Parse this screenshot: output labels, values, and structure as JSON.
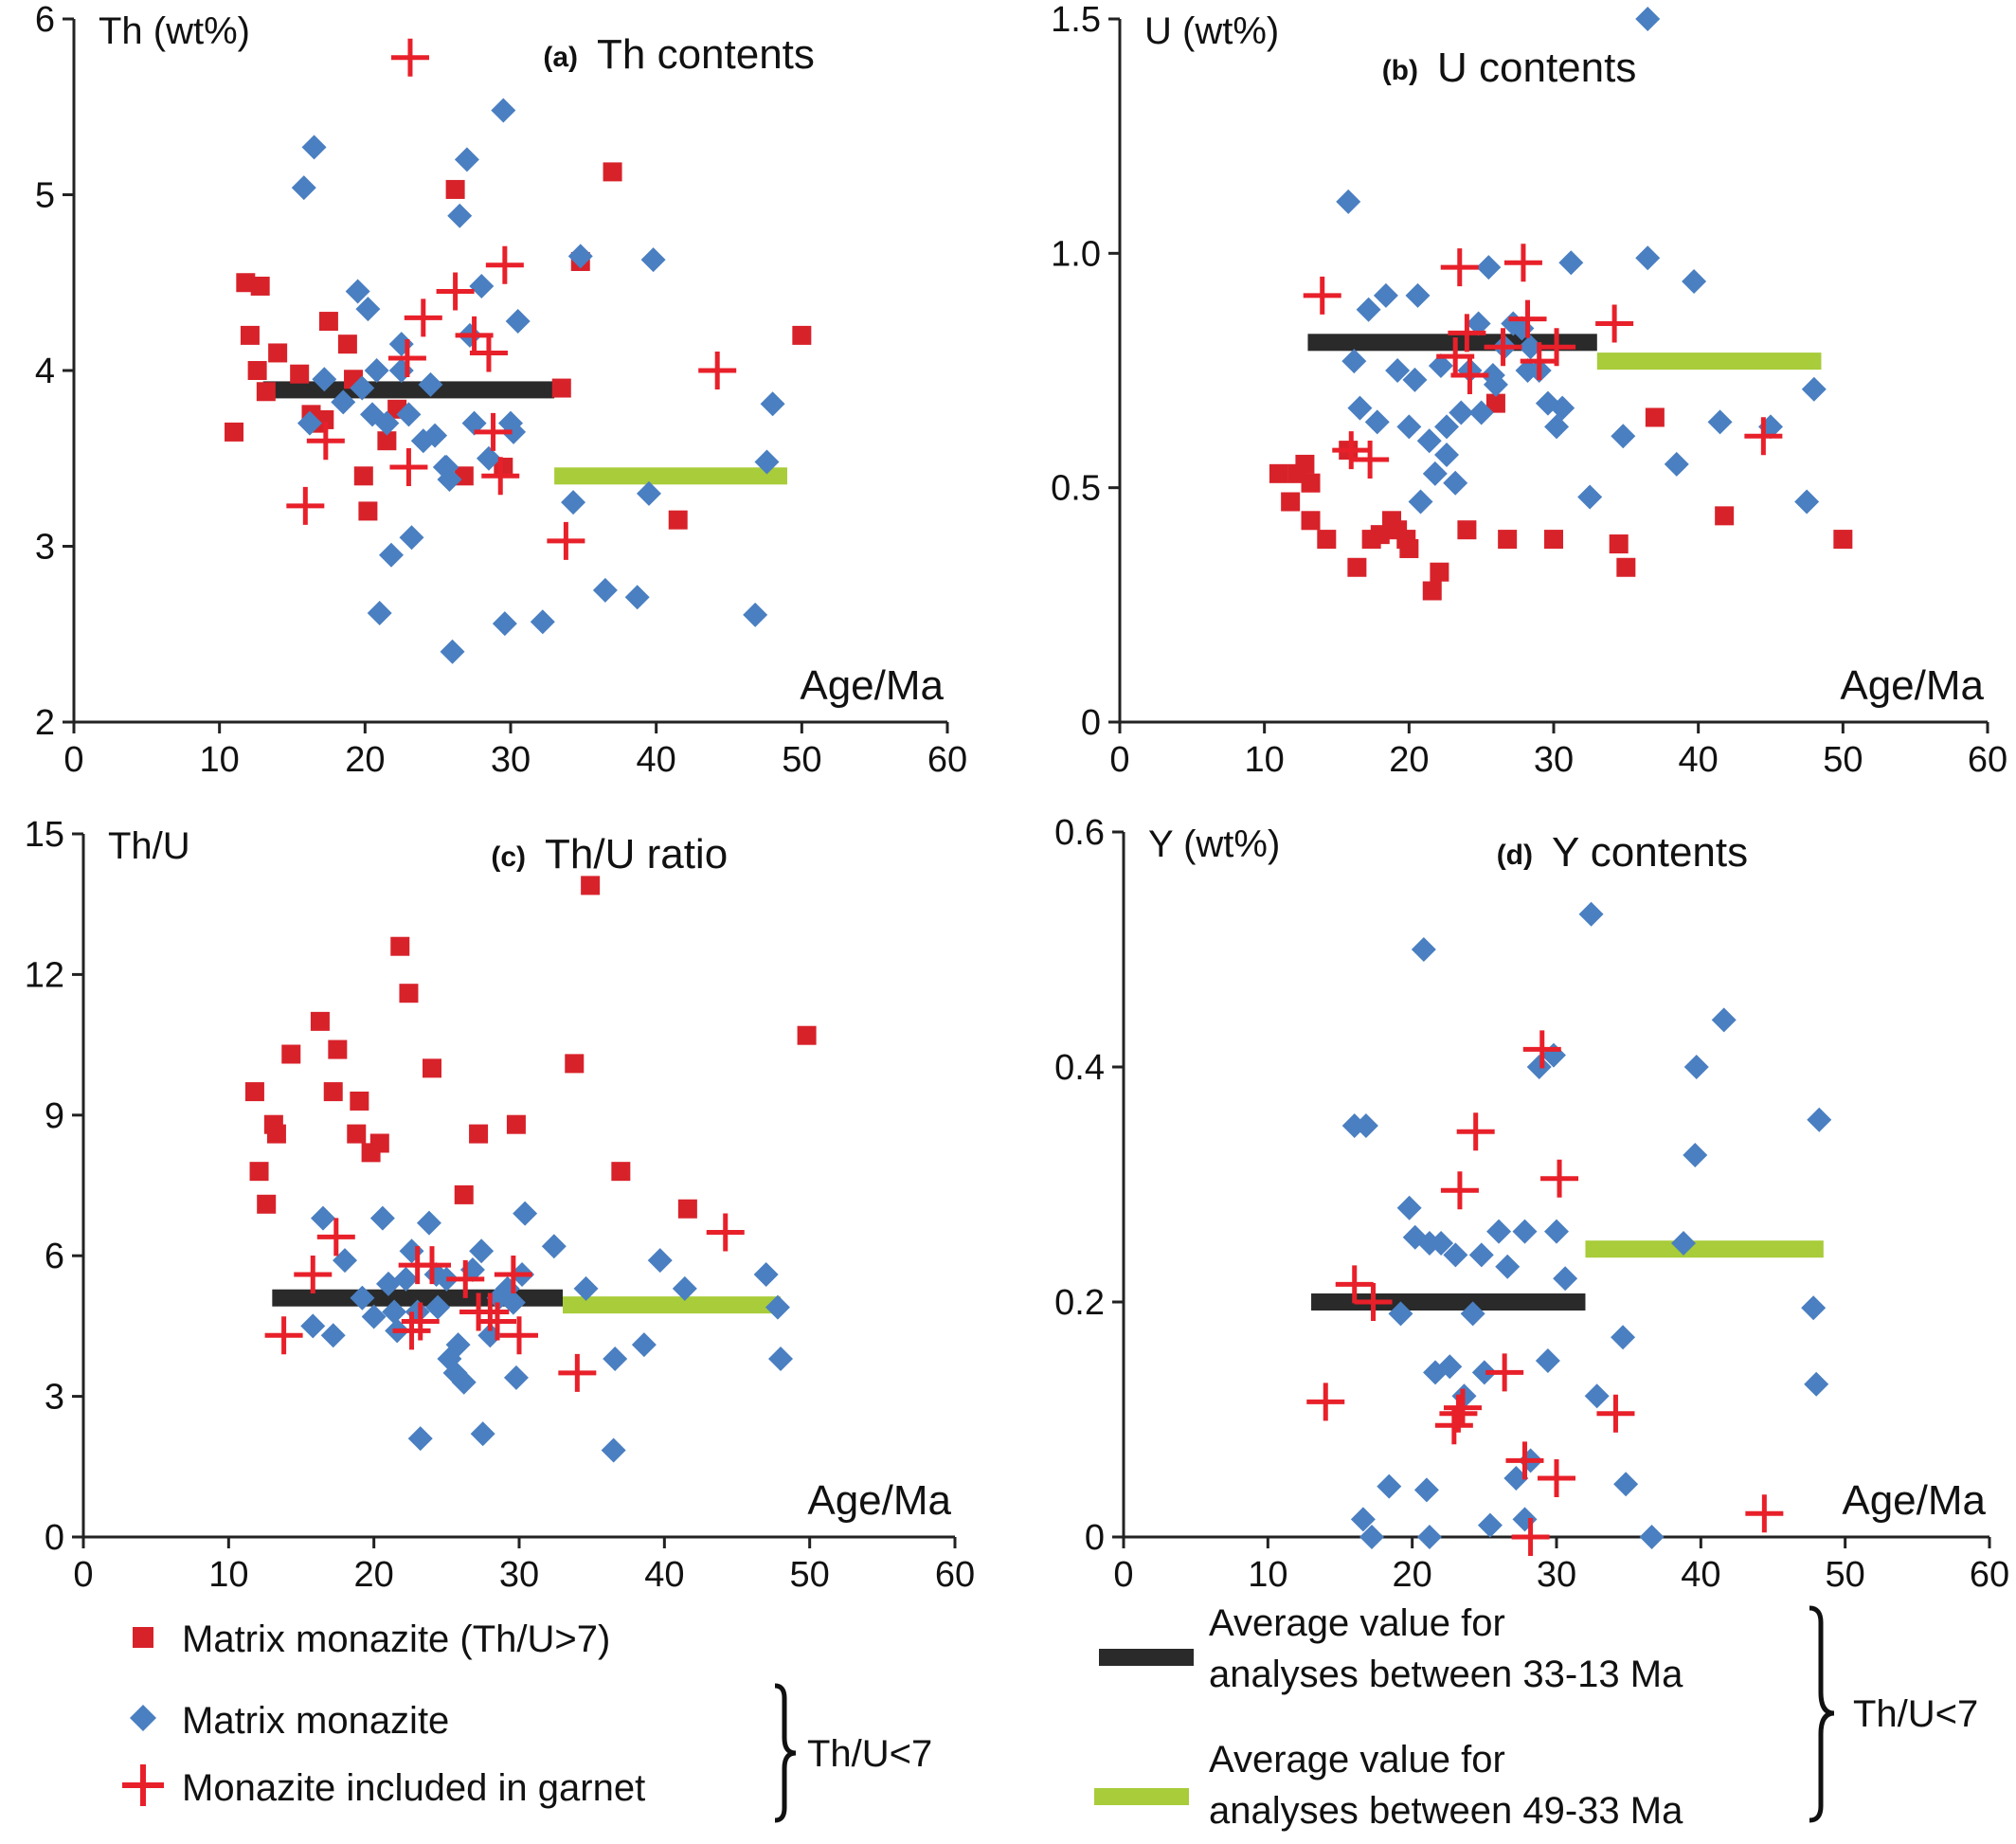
{
  "colors": {
    "matrix_high": "#d8222a",
    "matrix": "#4a7fc1",
    "garnet": "#e8202a",
    "avg_33_13": "#2a2a2a",
    "avg_49_33": "#a8cc3a"
  },
  "legend": {
    "matrix_high": "Matrix monazite (Th/U>7)",
    "matrix": "Matrix monazite",
    "garnet": "Monazite included in garnet",
    "brace_left": "Th/U<7",
    "avg_33_13_line1": "Average value for",
    "avg_33_13_line2": "analyses between  33-13 Ma",
    "avg_49_33_line1": "Average value for",
    "avg_49_33_line2": "analyses between  49-33 Ma",
    "brace_right": "Th/U<7"
  },
  "chart_data": [
    {
      "type": "scatter",
      "letter": "(a)",
      "title": "Th contents",
      "xlabel": "Age/Ma",
      "ylabel": "Th (wt%)",
      "xlim": [
        0,
        60
      ],
      "ylim": [
        2,
        6
      ],
      "xticks": [
        "0",
        "10",
        "20",
        "30",
        "40",
        "50",
        "60"
      ],
      "yticks": [
        "2",
        "3",
        "4",
        "5",
        "6"
      ],
      "xtick_values": [
        0,
        10,
        20,
        30,
        40,
        50,
        60
      ],
      "ytick_values": [
        2,
        3,
        4,
        5,
        6
      ],
      "series": [
        {
          "name": "Matrix monazite (Th/U>7)",
          "marker": "square",
          "x": [
            11,
            11.8,
            12.1,
            12.8,
            12.6,
            13.2,
            14,
            15.5,
            16.3,
            16.8,
            17.2,
            17.5,
            18.8,
            19.2,
            19.9,
            20.2,
            21.5,
            22.2,
            26.2,
            26.8,
            29.5,
            33.5,
            34.8,
            37,
            41.5,
            50
          ],
          "y": [
            3.65,
            4.5,
            4.2,
            4.48,
            4.0,
            3.88,
            4.1,
            3.98,
            3.75,
            3.7,
            3.72,
            4.28,
            4.15,
            3.95,
            3.4,
            3.2,
            3.6,
            3.78,
            5.03,
            3.4,
            3.45,
            3.9,
            4.62,
            5.13,
            3.15,
            4.2
          ]
        },
        {
          "name": "Matrix monazite",
          "marker": "diamond",
          "x": [
            15.8,
            16.5,
            16.2,
            17.2,
            18.5,
            19.5,
            20.2,
            20.5,
            21,
            21.5,
            22.5,
            23,
            24,
            24.5,
            25.5,
            26,
            27.5,
            26.5,
            27,
            28,
            29.5,
            30,
            30.5,
            19.8,
            20.8,
            21.8,
            22.5,
            23.2,
            24.8,
            25.6,
            25.8,
            27.2,
            28.5,
            30.2,
            29.6,
            32.2,
            34.3,
            34.8,
            36.5,
            38.7,
            39.5,
            39.8,
            46.8,
            47.6,
            48
          ],
          "y": [
            5.04,
            5.27,
            3.7,
            3.95,
            3.82,
            4.45,
            4.35,
            3.75,
            2.62,
            3.7,
            4.15,
            3.75,
            3.6,
            3.92,
            3.45,
            2.4,
            3.7,
            4.88,
            5.2,
            4.48,
            5.48,
            3.7,
            4.28,
            3.9,
            4.0,
            2.95,
            4.0,
            3.05,
            3.63,
            3.45,
            3.38,
            4.2,
            3.5,
            3.65,
            2.56,
            2.57,
            3.25,
            4.65,
            2.75,
            2.71,
            3.3,
            4.63,
            2.61,
            3.48,
            3.81
          ]
        },
        {
          "name": "Monazite included in garnet",
          "marker": "plus",
          "x": [
            15.9,
            17.3,
            22.9,
            23,
            24,
            26.2,
            27.5,
            28.5,
            28.8,
            29.6,
            29.3,
            33.8,
            44.2,
            23.1
          ],
          "y": [
            3.23,
            3.6,
            4.07,
            3.45,
            4.3,
            4.45,
            4.2,
            4.1,
            3.65,
            4.6,
            3.4,
            3.03,
            4.0,
            5.78
          ]
        }
      ],
      "averages": [
        {
          "name": "avg_33_13",
          "from": 13,
          "to": 33,
          "y": 3.89
        },
        {
          "name": "avg_49_33",
          "from": 33,
          "to": 49,
          "y": 3.4
        }
      ]
    },
    {
      "type": "scatter",
      "letter": "(b)",
      "title": "U contents",
      "xlabel": "Age/Ma",
      "ylabel": "U (wt%)",
      "xlim": [
        0,
        60
      ],
      "ylim": [
        0,
        1.5
      ],
      "xticks": [
        "0",
        "10",
        "20",
        "30",
        "40",
        "50",
        "60"
      ],
      "yticks": [
        "0",
        "0.5",
        "1.0",
        "1.5"
      ],
      "xtick_values": [
        0,
        10,
        20,
        30,
        40,
        50,
        60
      ],
      "ytick_values": [
        0,
        0.5,
        1.0,
        1.5
      ],
      "series": [
        {
          "name": "Matrix monazite (Th/U>7)",
          "marker": "square",
          "x": [
            11,
            11.8,
            12.3,
            12.8,
            13.2,
            13.2,
            14.3,
            15.8,
            16.4,
            17.4,
            18,
            18.8,
            19.2,
            19.8,
            20,
            21.6,
            22.1,
            24,
            26,
            26.8,
            30,
            34.5,
            35,
            37,
            41.8,
            50
          ],
          "y": [
            0.53,
            0.47,
            0.53,
            0.55,
            0.51,
            0.43,
            0.39,
            0.58,
            0.33,
            0.39,
            0.4,
            0.43,
            0.41,
            0.39,
            0.37,
            0.28,
            0.32,
            0.41,
            0.68,
            0.39,
            0.39,
            0.38,
            0.33,
            0.65,
            0.44,
            0.39
          ]
        },
        {
          "name": "Matrix monazite",
          "marker": "diamond",
          "x": [
            15.8,
            16.2,
            16.6,
            17.2,
            17.8,
            18.4,
            19.2,
            20,
            20.4,
            20.8,
            21.4,
            21.8,
            22.2,
            22.6,
            23.2,
            23.6,
            24.2,
            25,
            25.5,
            26,
            26.6,
            27.2,
            27.8,
            28.4,
            29,
            29.6,
            30.2,
            31.2,
            32.5,
            34.8,
            36.5,
            38.5,
            39.7,
            41.5,
            45,
            47.5,
            48,
            36.5,
            20.6,
            24.8,
            28.2,
            25.8,
            22.6,
            30.6
          ],
          "y": [
            1.11,
            0.77,
            0.67,
            0.88,
            0.64,
            0.91,
            0.75,
            0.63,
            0.73,
            0.47,
            0.6,
            0.53,
            0.76,
            0.63,
            0.51,
            0.66,
            0.75,
            0.66,
            0.97,
            0.72,
            0.8,
            0.85,
            0.84,
            0.8,
            0.75,
            0.68,
            0.63,
            0.98,
            0.48,
            0.61,
            0.99,
            0.55,
            0.94,
            0.64,
            0.63,
            0.47,
            0.71,
            1.5,
            0.91,
            0.85,
            0.75,
            0.74,
            0.57,
            0.67
          ]
        },
        {
          "name": "Monazite included in garnet",
          "marker": "plus",
          "x": [
            14,
            16,
            17.3,
            23.5,
            24,
            24.2,
            26.5,
            27.9,
            28.2,
            29,
            30.2,
            34.2,
            44.5,
            23.2
          ],
          "y": [
            0.91,
            0.58,
            0.56,
            0.97,
            0.83,
            0.74,
            0.8,
            0.98,
            0.86,
            0.77,
            0.8,
            0.85,
            0.61,
            0.78
          ]
        }
      ],
      "averages": [
        {
          "name": "avg_33_13",
          "from": 13,
          "to": 33,
          "y": 0.81
        },
        {
          "name": "avg_49_33",
          "from": 33,
          "to": 48.5,
          "y": 0.77
        }
      ]
    },
    {
      "type": "scatter",
      "letter": "(c)",
      "title": "Th/U ratio",
      "xlabel": "Age/Ma",
      "ylabel": "Th/U",
      "xlim": [
        0,
        60
      ],
      "ylim": [
        0,
        15
      ],
      "xticks": [
        "0",
        "10",
        "20",
        "30",
        "40",
        "50",
        "60"
      ],
      "yticks": [
        "0",
        "3",
        "6",
        "9",
        "12",
        "15"
      ],
      "xtick_values": [
        0,
        10,
        20,
        30,
        40,
        50,
        60
      ],
      "ytick_values": [
        0,
        3,
        6,
        9,
        12,
        15
      ],
      "series": [
        {
          "name": "Matrix monazite (Th/U>7)",
          "marker": "square",
          "x": [
            11.8,
            12.1,
            12.6,
            13.1,
            13.3,
            14.3,
            16.3,
            17.2,
            17.5,
            18.8,
            19,
            19.8,
            20.4,
            21.8,
            22.4,
            24,
            26.2,
            27.2,
            29.8,
            33.8,
            34.9,
            37,
            41.6,
            49.8
          ],
          "y": [
            9.5,
            7.8,
            7.1,
            8.8,
            8.6,
            10.3,
            11,
            9.5,
            10.4,
            8.6,
            9.3,
            8.2,
            8.4,
            12.6,
            11.6,
            10,
            7.3,
            8.6,
            8.8,
            10.1,
            13.9,
            7.8,
            7,
            10.7
          ]
        },
        {
          "name": "Matrix monazite",
          "marker": "diamond",
          "x": [
            15.8,
            16.5,
            17.2,
            18,
            19.2,
            20,
            20.6,
            21,
            21.6,
            22.2,
            22.6,
            23.2,
            23.8,
            24.4,
            25,
            25.6,
            26.2,
            26.8,
            27.4,
            28,
            28.6,
            29.2,
            29.8,
            30.4,
            32.4,
            34.6,
            36.6,
            38.6,
            39.7,
            41.4,
            47,
            47.8,
            48,
            21.4,
            23,
            24.3,
            25.8,
            27.5,
            30.2,
            36.5,
            25.2,
            29.6
          ],
          "y": [
            4.5,
            6.8,
            4.3,
            5.9,
            5.1,
            4.7,
            6.8,
            5.4,
            4.4,
            5.5,
            6.1,
            2.1,
            6.7,
            4.9,
            5.5,
            3.5,
            3.3,
            5.7,
            6.1,
            4.3,
            5.1,
            5.3,
            3.4,
            6.9,
            6.2,
            5.3,
            3.8,
            4.1,
            5.9,
            5.3,
            5.6,
            4.9,
            3.8,
            4.8,
            4.8,
            5.6,
            4.1,
            2.2,
            5.6,
            1.85,
            3.8,
            5.0
          ]
        },
        {
          "name": "Monazite included in garnet",
          "marker": "plus",
          "x": [
            13.8,
            15.8,
            17.4,
            23,
            23.2,
            24,
            26.3,
            27.2,
            28.5,
            29.6,
            30,
            34,
            44.2,
            22.6,
            28
          ],
          "y": [
            4.3,
            5.6,
            6.4,
            5.8,
            4.6,
            5.8,
            5.5,
            4.8,
            4.6,
            5.6,
            4.3,
            3.5,
            6.5,
            4.4,
            4.8
          ]
        }
      ],
      "averages": [
        {
          "name": "avg_33_13",
          "from": 13,
          "to": 33,
          "y": 5.1
        },
        {
          "name": "avg_49_33",
          "from": 33,
          "to": 48,
          "y": 4.95
        }
      ]
    },
    {
      "type": "scatter",
      "letter": "(d)",
      "title": "Y contents",
      "xlabel": "Age/Ma",
      "ylabel": "Y (wt%)",
      "xlim": [
        0,
        60
      ],
      "ylim": [
        0,
        0.6
      ],
      "xticks": [
        "0",
        "10",
        "20",
        "30",
        "40",
        "50",
        "60"
      ],
      "yticks": [
        "0",
        "0.2",
        "0.4",
        "0.6"
      ],
      "xtick_values": [
        0,
        10,
        20,
        30,
        40,
        50,
        60
      ],
      "ytick_values": [
        0,
        0.2,
        0.4,
        0.6
      ],
      "series": [
        {
          "name": "Matrix monazite",
          "marker": "diamond",
          "x": [
            16,
            16.6,
            16.8,
            17.2,
            18.4,
            19.2,
            19.8,
            20.2,
            20.8,
            21.2,
            21.6,
            22,
            22.6,
            23,
            23.6,
            24.2,
            24.8,
            25.4,
            26,
            26.6,
            27.2,
            27.8,
            28.2,
            28.8,
            29.4,
            30,
            30.6,
            32.4,
            32.8,
            34.6,
            34.8,
            36.6,
            38.8,
            39.6,
            39.7,
            41.6,
            47.8,
            48,
            48.2,
            21,
            21.2,
            25,
            27.8,
            29.8
          ],
          "y": [
            0.35,
            0.015,
            0.35,
            0,
            0.043,
            0.19,
            0.28,
            0.255,
            0.5,
            0.25,
            0.14,
            0.25,
            0.145,
            0.24,
            0.12,
            0.19,
            0.24,
            0.01,
            0.26,
            0.23,
            0.05,
            0.26,
            0.065,
            0.4,
            0.15,
            0.26,
            0.22,
            0.53,
            0.12,
            0.17,
            0.045,
            0,
            0.25,
            0.325,
            0.4,
            0.44,
            0.195,
            0.13,
            0.355,
            0.04,
            0,
            0.14,
            0.015,
            0.41
          ]
        },
        {
          "name": "Monazite included in garnet",
          "marker": "plus",
          "x": [
            14,
            16,
            17.3,
            22.9,
            23.3,
            23.5,
            24.4,
            26.4,
            27.8,
            28.2,
            29,
            30,
            30.2,
            34.1,
            44.4,
            23.2
          ],
          "y": [
            0.115,
            0.215,
            0.2,
            0.095,
            0.295,
            0.11,
            0.345,
            0.14,
            0.065,
            0,
            0.415,
            0.05,
            0.305,
            0.105,
            0.02,
            0.105
          ]
        }
      ],
      "averages": [
        {
          "name": "avg_33_13",
          "from": 13,
          "to": 32,
          "y": 0.2
        },
        {
          "name": "avg_49_33",
          "from": 32,
          "to": 48.5,
          "y": 0.245
        }
      ]
    }
  ]
}
